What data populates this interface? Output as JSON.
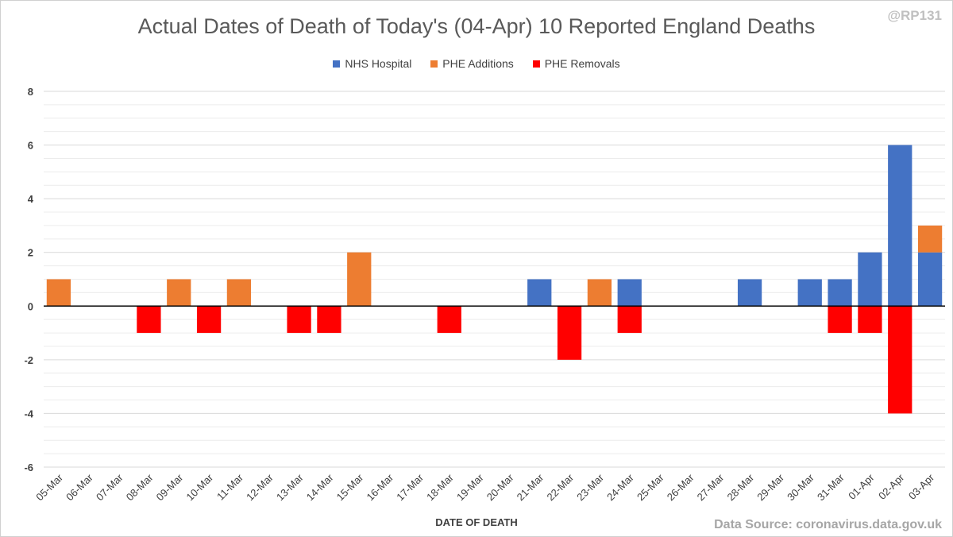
{
  "header": {
    "title": "Actual Dates of Death of Today's (04-Apr) 10 Reported England Deaths",
    "handle": "@RP131"
  },
  "footer": {
    "source": "Data Source: coronavirus.data.gov.uk"
  },
  "colors": {
    "nhs": "#4472c4",
    "additions": "#ed7d31",
    "removals": "#ff0000",
    "grid": "#d9d9d9",
    "axis_text": "#404040"
  },
  "chart_data": {
    "type": "bar",
    "stacked": true,
    "title": "Actual Dates of Death of Today's (04-Apr) 10 Reported England Deaths",
    "xlabel": "DATE OF DEATH",
    "ylabel": "",
    "ylim": [
      -6,
      8
    ],
    "yticks": [
      8,
      6,
      4,
      2,
      0,
      -2,
      -4,
      -6
    ],
    "grid": true,
    "legend_position": "top-center",
    "categories": [
      "05-Mar",
      "06-Mar",
      "07-Mar",
      "08-Mar",
      "09-Mar",
      "10-Mar",
      "11-Mar",
      "12-Mar",
      "13-Mar",
      "14-Mar",
      "15-Mar",
      "16-Mar",
      "17-Mar",
      "18-Mar",
      "19-Mar",
      "20-Mar",
      "21-Mar",
      "22-Mar",
      "23-Mar",
      "24-Mar",
      "25-Mar",
      "26-Mar",
      "27-Mar",
      "28-Mar",
      "29-Mar",
      "30-Mar",
      "31-Mar",
      "01-Apr",
      "02-Apr",
      "03-Apr"
    ],
    "series": [
      {
        "name": "NHS Hospital",
        "color": "#4472c4",
        "values": [
          0,
          0,
          0,
          0,
          0,
          0,
          0,
          0,
          0,
          0,
          0,
          0,
          0,
          0,
          0,
          0,
          1,
          0,
          0,
          1,
          0,
          0,
          0,
          1,
          0,
          1,
          1,
          2,
          6,
          2
        ]
      },
      {
        "name": "PHE Additions",
        "color": "#ed7d31",
        "values": [
          1,
          0,
          0,
          0,
          1,
          0,
          1,
          0,
          0,
          0,
          2,
          0,
          0,
          0,
          0,
          0,
          0,
          0,
          1,
          0,
          0,
          0,
          0,
          0,
          0,
          0,
          0,
          0,
          0,
          1
        ]
      },
      {
        "name": "PHE Removals",
        "color": "#ff0000",
        "values": [
          0,
          0,
          0,
          -1,
          0,
          -1,
          0,
          0,
          -1,
          -1,
          0,
          0,
          0,
          -1,
          0,
          0,
          0,
          -2,
          0,
          -1,
          0,
          0,
          0,
          0,
          0,
          0,
          -1,
          -1,
          -4,
          0
        ]
      }
    ]
  }
}
